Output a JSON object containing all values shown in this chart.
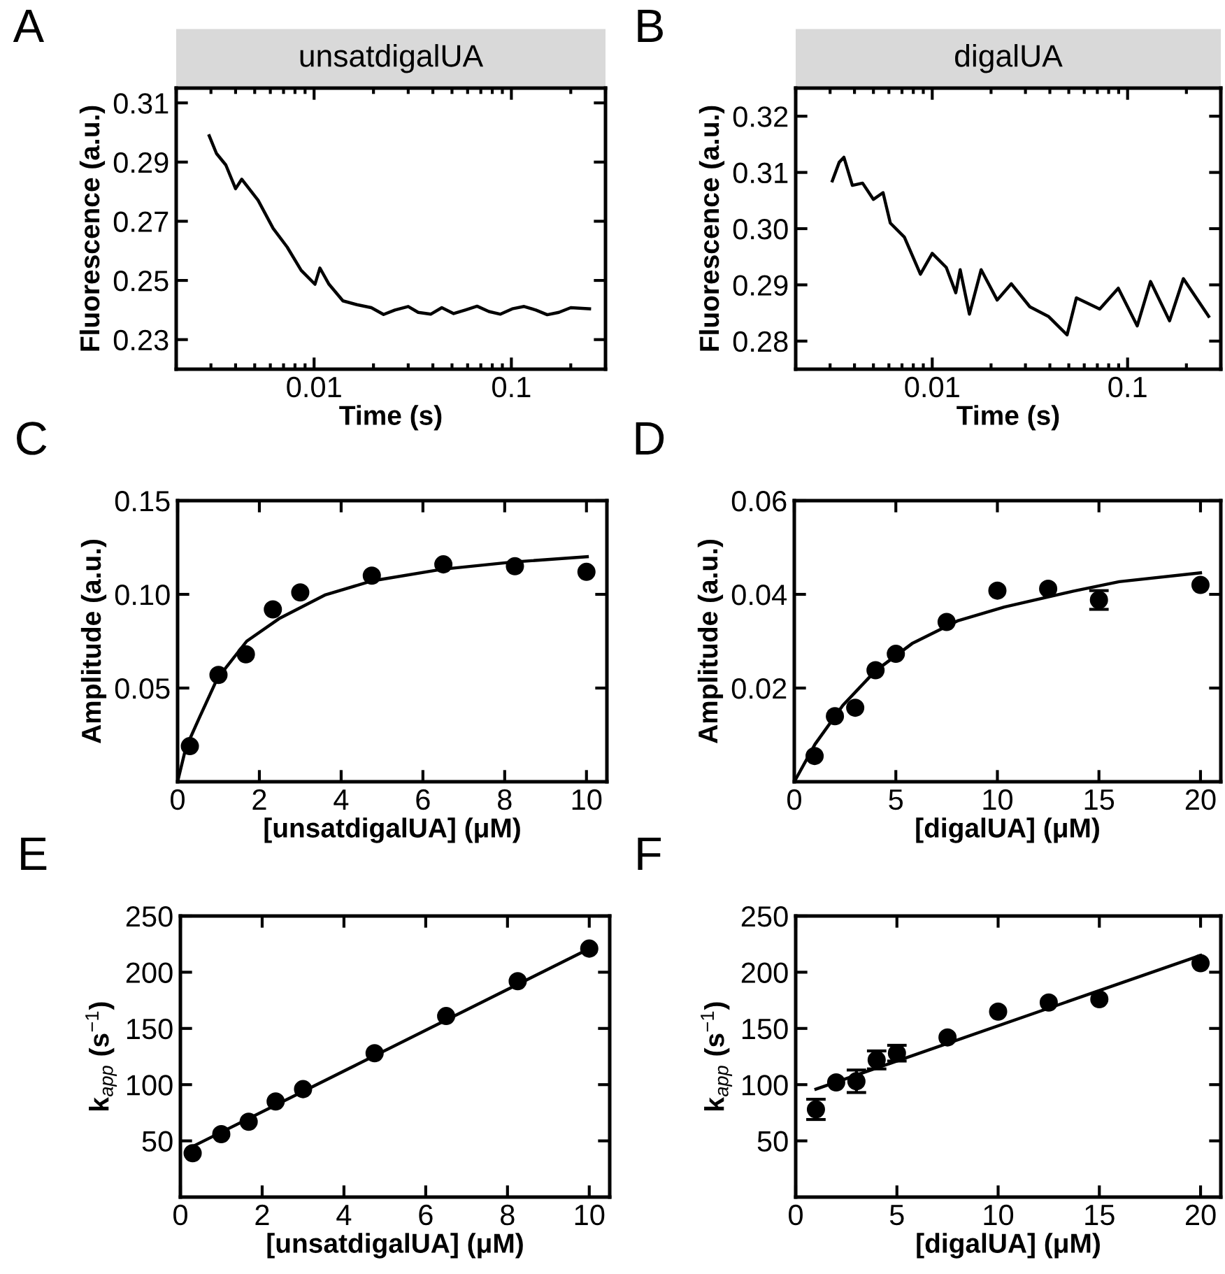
{
  "chart_data": [
    {
      "type": "line",
      "title": "unsatdigalUA",
      "xlabel": "Time (s)",
      "ylabel": "Fluorescence (a.u.)",
      "annotations": [
        "A"
      ],
      "log": "x",
      "xlim": [
        0.002,
        0.3
      ],
      "xticks": [
        0.01,
        0.1
      ],
      "ylim": [
        0.22,
        0.315
      ],
      "yticks": [
        0.23,
        0.25,
        0.27,
        0.29,
        0.31
      ],
      "grid": false,
      "legend": false,
      "series": [
        {
          "color": "#000000",
          "x": [
            0.00294,
            0.0032,
            0.00357,
            0.004,
            0.0043,
            0.0052,
            0.0062,
            0.0073,
            0.0086,
            0.0101,
            0.0107,
            0.0119,
            0.014,
            0.0165,
            0.0195,
            0.0225,
            0.0257,
            0.03,
            0.0337,
            0.039,
            0.0444,
            0.051,
            0.0584,
            0.067,
            0.0769,
            0.088,
            0.101,
            0.116,
            0.133,
            0.152,
            0.174,
            0.2,
            0.249
          ],
          "values": [
            0.2989,
            0.2929,
            0.289,
            0.281,
            0.2842,
            0.2771,
            0.2676,
            0.2613,
            0.2534,
            0.2487,
            0.2542,
            0.2487,
            0.2431,
            0.2418,
            0.2408,
            0.2385,
            0.24,
            0.2412,
            0.2392,
            0.2386,
            0.2408,
            0.2388,
            0.24,
            0.2413,
            0.2395,
            0.2386,
            0.2404,
            0.2412,
            0.24,
            0.2384,
            0.2392,
            0.2408,
            0.2404
          ]
        }
      ]
    },
    {
      "type": "line",
      "title": "digalUA",
      "xlabel": "Time (s)",
      "ylabel": "Fluorescence (a.u.)",
      "annotations": [
        "B"
      ],
      "log": "x",
      "xlim": [
        0.002,
        0.3
      ],
      "xticks": [
        0.01,
        0.1
      ],
      "ylim": [
        0.275,
        0.325
      ],
      "yticks": [
        0.28,
        0.29,
        {
          "value": 0.3,
          "label": "0.30"
        },
        0.31,
        0.32
      ],
      "grid": false,
      "legend": false,
      "series": [
        {
          "color": "#000000",
          "x": [
            0.00308,
            0.00334,
            0.00353,
            0.0039,
            0.0044,
            0.005,
            0.0056,
            0.0061,
            0.0072,
            0.0087,
            0.01,
            0.0118,
            0.0132,
            0.0139,
            0.0155,
            0.0178,
            0.0215,
            0.0254,
            0.0316,
            0.0393,
            0.049,
            0.0547,
            0.072,
            0.0896,
            0.112,
            0.131,
            0.164,
            0.193,
            0.26
          ],
          "values": [
            0.3085,
            0.3118,
            0.3127,
            0.3077,
            0.3081,
            0.3052,
            0.3064,
            0.301,
            0.2985,
            0.2919,
            0.2956,
            0.2931,
            0.2886,
            0.2927,
            0.2848,
            0.2927,
            0.2873,
            0.2902,
            0.2861,
            0.2844,
            0.2811,
            0.2877,
            0.2857,
            0.2894,
            0.2827,
            0.2906,
            0.2836,
            0.2911,
            0.2844
          ]
        }
      ]
    },
    {
      "type": "scatter",
      "xlabel": "[unsatdigalUA] (μM)",
      "ylabel": "Amplitude (a.u.)",
      "annotations": [
        "C"
      ],
      "xlim": [
        0,
        10.5
      ],
      "xticks": [
        0,
        2,
        4,
        6,
        8,
        10
      ],
      "ylim": [
        0,
        0.15
      ],
      "yticks": [
        0.05,
        {
          "value": 0.1,
          "label": "0.10"
        },
        0.15
      ],
      "grid": false,
      "legend": false,
      "series": [
        {
          "marker": "circle",
          "color": "#000000",
          "x": [
            0.3,
            1,
            1.67,
            2.33,
            3,
            4.75,
            6.5,
            8.25,
            10
          ],
          "values": [
            0.019,
            0.057,
            0.068,
            0.092,
            0.101,
            0.11,
            0.116,
            0.115,
            0.112
          ]
        },
        {
          "type": "line",
          "marker": "none",
          "color": "#000000",
          "x": [
            0,
            0.2,
            0.55,
            0.97,
            1.69,
            2.48,
            3.62,
            4.76,
            6.47,
            8.18,
            10.02
          ],
          "values": [
            0,
            0.018,
            0.035,
            0.055,
            0.075,
            0.087,
            0.0998,
            0.1072,
            0.1134,
            0.1172,
            0.1201
          ]
        }
      ]
    },
    {
      "type": "scatter",
      "xlabel": "[digalUA] (μM)",
      "ylabel": "Amplitude (a.u.)",
      "annotations": [
        "D"
      ],
      "xlim": [
        0,
        21
      ],
      "xticks": [
        0,
        5,
        10,
        15,
        20
      ],
      "ylim": [
        0,
        0.06
      ],
      "yticks": [
        0.02,
        0.04,
        0.06
      ],
      "grid": false,
      "legend": false,
      "series": [
        {
          "marker": "circle",
          "color": "#000000",
          "x": [
            1,
            2,
            3,
            4,
            5,
            7.5,
            10,
            12.5,
            15,
            20
          ],
          "values": [
            0.0055,
            0.014,
            0.0158,
            0.0238,
            0.0273,
            0.0341,
            0.0408,
            0.0412,
            0.0388,
            0.042
          ],
          "errors": [
            null,
            null,
            null,
            null,
            null,
            null,
            null,
            null,
            0.002,
            null
          ]
        },
        {
          "type": "line",
          "marker": "none",
          "color": "#000000",
          "x": [
            0,
            1.02,
            2.39,
            3.98,
            5.8,
            8.07,
            10.34,
            13.75,
            16,
            20
          ],
          "values": [
            0,
            0.008,
            0.0163,
            0.0236,
            0.0295,
            0.0344,
            0.0373,
            0.0407,
            0.0427,
            0.0446
          ]
        }
      ]
    },
    {
      "type": "scatter",
      "xlabel": "[unsatdigalUA] (μM)",
      "ylabel": "k$_{app}$ (s$^{−1}$)",
      "annotations": [
        "E"
      ],
      "xlim": [
        0,
        10.5
      ],
      "xticks": [
        0,
        2,
        4,
        6,
        8,
        10
      ],
      "ylim": [
        0,
        250
      ],
      "yticks": [
        50,
        100,
        150,
        200,
        250
      ],
      "grid": false,
      "legend": false,
      "series": [
        {
          "marker": "circle",
          "color": "#000000",
          "x": [
            0.3,
            1,
            1.67,
            2.33,
            3,
            4.75,
            6.5,
            8.25,
            10
          ],
          "values": [
            39,
            56,
            67,
            85,
            96,
            128,
            161,
            192,
            221
          ]
        },
        {
          "type": "line",
          "marker": "none",
          "color": "#000000",
          "x": [
            0.3,
            10
          ],
          "values": [
            45,
            221
          ]
        }
      ]
    },
    {
      "type": "scatter",
      "xlabel": "[digalUA] (μM)",
      "ylabel": "k$_{app}$ (s$^{−1}$)",
      "annotations": [
        "F"
      ],
      "xlim": [
        0,
        21
      ],
      "xticks": [
        0,
        5,
        10,
        15,
        20
      ],
      "ylim": [
        0,
        250
      ],
      "yticks": [
        50,
        100,
        150,
        200,
        250
      ],
      "grid": false,
      "legend": false,
      "series": [
        {
          "marker": "circle",
          "color": "#000000",
          "x": [
            1,
            2,
            3,
            4,
            5,
            7.5,
            10,
            12.5,
            15,
            20
          ],
          "values": [
            78,
            102,
            103,
            122,
            128,
            142,
            165,
            173,
            176,
            208
          ],
          "errors": [
            9,
            null,
            10,
            8,
            7,
            null,
            null,
            null,
            null,
            null
          ]
        },
        {
          "type": "line",
          "marker": "none",
          "color": "#000000",
          "x": [
            1,
            20
          ],
          "values": [
            96,
            215
          ]
        }
      ]
    }
  ]
}
